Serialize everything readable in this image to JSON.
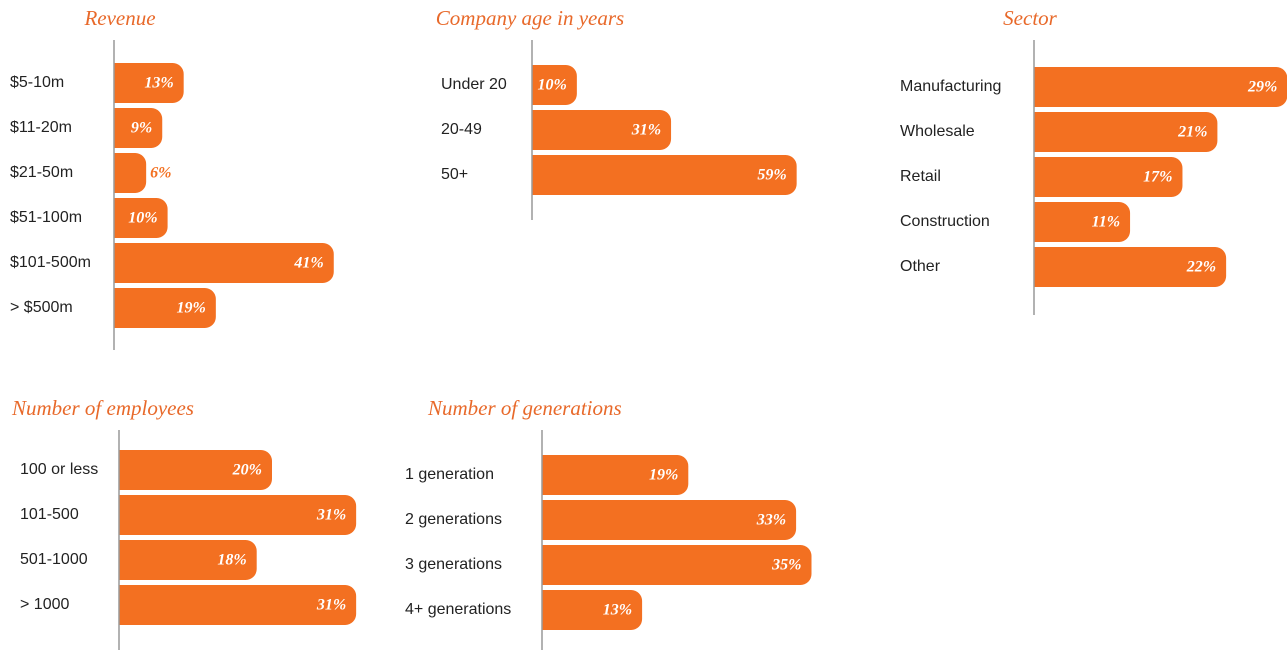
{
  "chart_data": [
    {
      "type": "bar",
      "orientation": "horizontal",
      "title": "Revenue",
      "color": "#f37021",
      "xlim": [
        0,
        50
      ],
      "categories": [
        "$5-10m",
        "$11-20m",
        "$21-50m",
        "$51-100m",
        "$101-500m",
        "> $500m"
      ],
      "values": [
        13,
        9,
        6,
        10,
        41,
        19
      ],
      "value_labels": [
        "13%",
        "9%",
        "6%",
        "10%",
        "41%",
        "19%"
      ]
    },
    {
      "type": "bar",
      "orientation": "horizontal",
      "title": "Company age in years",
      "color": "#f37021",
      "xlim": [
        0,
        70
      ],
      "categories": [
        "Under 20",
        "20-49",
        "50+"
      ],
      "values": [
        10,
        31,
        59
      ],
      "value_labels": [
        "10%",
        "31%",
        "59%"
      ]
    },
    {
      "type": "bar",
      "orientation": "horizontal",
      "title": "Sector",
      "color": "#f37021",
      "xlim": [
        0,
        30
      ],
      "categories": [
        "Manufacturing",
        "Wholesale",
        "Retail",
        "Construction",
        "Other"
      ],
      "values": [
        29,
        21,
        17,
        11,
        22
      ],
      "value_labels": [
        "29%",
        "21%",
        "17%",
        "11%",
        "22%"
      ]
    },
    {
      "type": "bar",
      "orientation": "horizontal",
      "title": "Number of employees",
      "color": "#f37021",
      "xlim": [
        0,
        40
      ],
      "categories": [
        "100 or less",
        "101-500",
        "501-1000",
        "> 1000"
      ],
      "values": [
        20,
        31,
        18,
        31
      ],
      "value_labels": [
        "20%",
        "31%",
        "18%",
        "31%"
      ]
    },
    {
      "type": "bar",
      "orientation": "horizontal",
      "title": "Number of generations",
      "color": "#f37021",
      "xlim": [
        0,
        40
      ],
      "categories": [
        "1 generation",
        "2 generations",
        "3 generations",
        "4+ generations"
      ],
      "values": [
        19,
        33,
        35,
        13
      ],
      "value_labels": [
        "19%",
        "33%",
        "35%",
        "13%"
      ]
    }
  ]
}
